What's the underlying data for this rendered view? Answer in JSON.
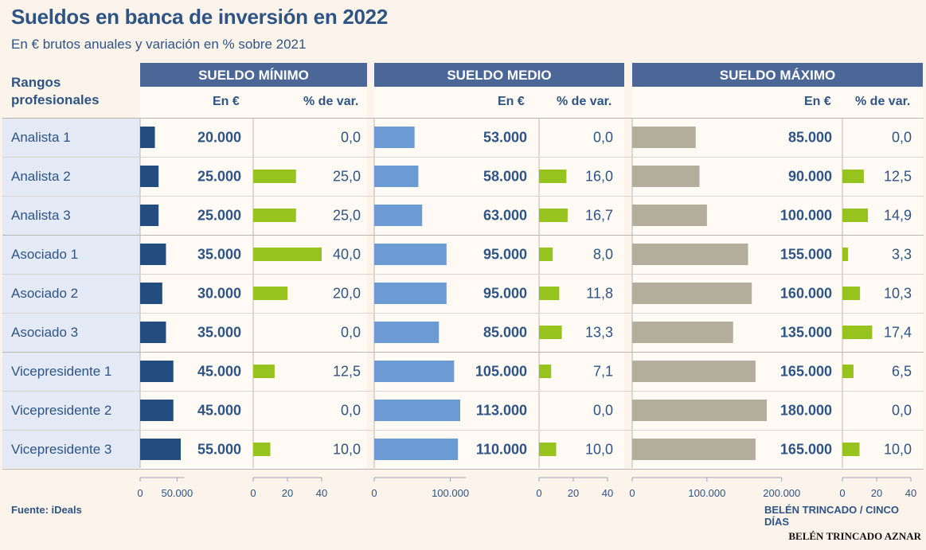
{
  "title": "Sueldos en banca de inversión en 2022",
  "subtitle": "En € brutos anuales  y variación en % sobre 2021",
  "rangos_header_line1": "Rangos",
  "rangos_header_line2": "profesionales",
  "col_eur": "En €",
  "col_var": "% de var.",
  "source": "Fuente: iDeals",
  "author": "BELÉN TRINCADO / CINCO DÍAS",
  "photo_credit": "BELÉN TRINCADO AZNAR",
  "colors": {
    "min_bar": "#234c7f",
    "med_bar": "#6b9bd2",
    "max_bar": "#b3ad9c",
    "var_bar": "#97c31f",
    "text": "#2e5486",
    "header_bg": "#4b6798"
  },
  "chart_data": {
    "type": "bar",
    "categories": [
      "Analista 1",
      "Analista 2",
      "Analista 3",
      "Asociado 1",
      "Asociado 2",
      "Asociado 3",
      "Vicepresidente 1",
      "Vicepresidente 2",
      "Vicepresidente 3"
    ],
    "panels": [
      {
        "name": "SUELDO MÍNIMO",
        "salary": [
          20000,
          25000,
          25000,
          35000,
          30000,
          35000,
          45000,
          45000,
          55000
        ],
        "salary_labels": [
          "20.000",
          "25.000",
          "25.000",
          "35.000",
          "30.000",
          "35.000",
          "45.000",
          "45.000",
          "55.000"
        ],
        "variation": [
          0.0,
          25.0,
          25.0,
          40.0,
          20.0,
          0.0,
          12.5,
          0.0,
          10.0
        ],
        "variation_labels": [
          "0,0",
          "25,0",
          "25,0",
          "40,0",
          "20,0",
          "0,0",
          "12,5",
          "0,0",
          "10,0"
        ],
        "salary_axis": {
          "max": 60000,
          "ticks": [
            0,
            50000
          ],
          "tick_labels": [
            "0",
            "50.000"
          ]
        },
        "variation_axis": {
          "max": 40,
          "ticks": [
            0,
            20,
            40
          ],
          "tick_labels": [
            "0",
            "20",
            "40"
          ]
        }
      },
      {
        "name": "SUELDO MEDIO",
        "salary": [
          53000,
          58000,
          63000,
          95000,
          95000,
          85000,
          105000,
          113000,
          110000
        ],
        "salary_labels": [
          "53.000",
          "58.000",
          "63.000",
          "95.000",
          "95.000",
          "85.000",
          "105.000",
          "113.000",
          "110.000"
        ],
        "variation": [
          0.0,
          16.0,
          16.7,
          8.0,
          11.8,
          13.3,
          7.1,
          0.0,
          10.0
        ],
        "variation_labels": [
          "0,0",
          "16,0",
          "16,7",
          "8,0",
          "11,8",
          "13,3",
          "7,1",
          "0,0",
          "10,0"
        ],
        "salary_axis": {
          "max": 120000,
          "ticks": [
            0,
            100000
          ],
          "tick_labels": [
            "0",
            "100.000"
          ]
        },
        "variation_axis": {
          "max": 40,
          "ticks": [
            0,
            20,
            40
          ],
          "tick_labels": [
            "0",
            "20",
            "40"
          ]
        }
      },
      {
        "name": "SUELDO MÁXIMO",
        "salary": [
          85000,
          90000,
          100000,
          155000,
          160000,
          135000,
          165000,
          180000,
          165000
        ],
        "salary_labels": [
          "85.000",
          "90.000",
          "100.000",
          "155.000",
          "160.000",
          "135.000",
          "165.000",
          "180.000",
          "165.000"
        ],
        "variation": [
          0.0,
          12.5,
          14.9,
          3.3,
          10.3,
          17.4,
          6.5,
          0.0,
          10.0
        ],
        "variation_labels": [
          "0,0",
          "12,5",
          "14,9",
          "3,3",
          "10,3",
          "17,4",
          "6,5",
          "0,0",
          "10,0"
        ],
        "salary_axis": {
          "max": 200000,
          "ticks": [
            0,
            100000,
            200000
          ],
          "tick_labels": [
            "0",
            "100.000",
            "200.000"
          ]
        },
        "variation_axis": {
          "max": 40,
          "ticks": [
            0,
            20,
            40
          ],
          "tick_labels": [
            "0",
            "20",
            "40"
          ]
        }
      }
    ]
  }
}
